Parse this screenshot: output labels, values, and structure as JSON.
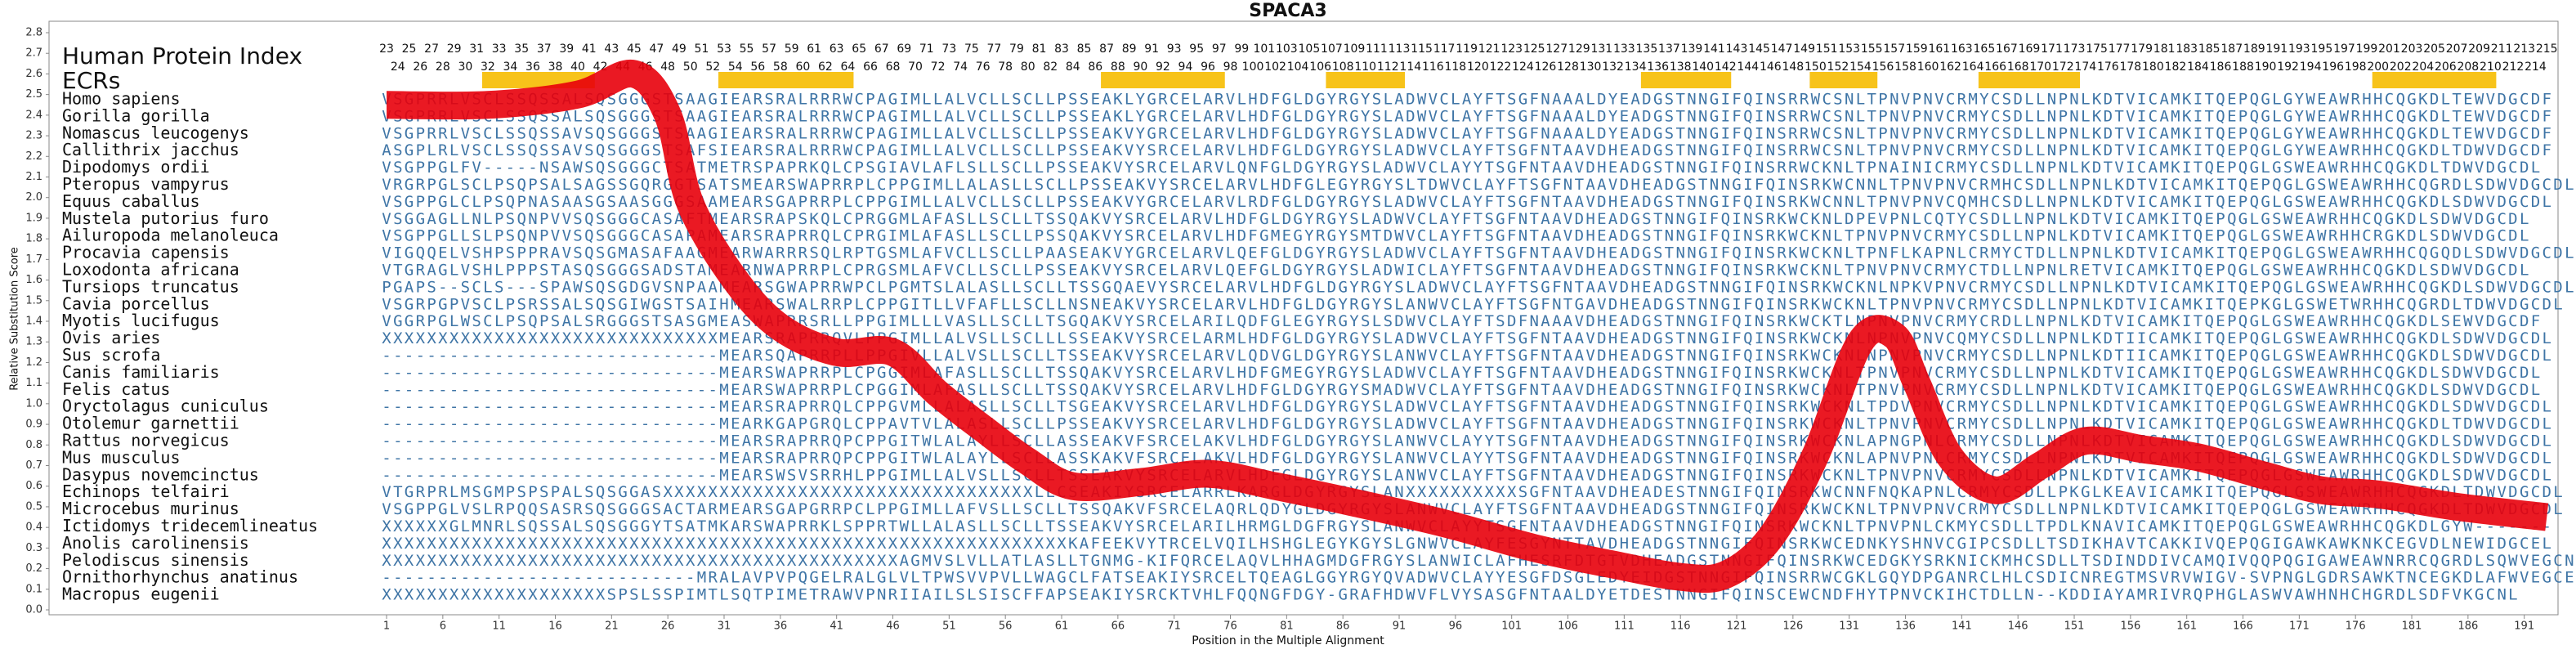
{
  "chart_data": {
    "type": "line",
    "title": "SPACA3",
    "header_label": "Human Protein Index",
    "ecr_label": "ECRs",
    "x_label": "Position in the Multiple Alignment",
    "y_label": "Relative Substitution Score",
    "xlim": [
      -29,
      194
    ],
    "ylim": [
      0,
      2.8
    ],
    "xticks": [
      1,
      6,
      11,
      16,
      21,
      26,
      31,
      36,
      41,
      46,
      51,
      56,
      61,
      66,
      71,
      76,
      81,
      86,
      91,
      96,
      101,
      106,
      111,
      116,
      121,
      126,
      131,
      136,
      141,
      146,
      151,
      156,
      161,
      166,
      171,
      176,
      181,
      186,
      191
    ],
    "yticks": [
      {
        "value": 0,
        "label": "0.0"
      },
      {
        "value": 0.1,
        "label": "0.1"
      },
      {
        "value": 0.2,
        "label": "0.2"
      },
      {
        "value": 0.3,
        "label": "0.3"
      },
      {
        "value": 0.4,
        "label": "0.4"
      },
      {
        "value": 0.5,
        "label": "0.5"
      },
      {
        "value": 0.6,
        "label": "0.6"
      },
      {
        "value": 0.7,
        "label": "0.7"
      },
      {
        "value": 0.8,
        "label": "0.8"
      },
      {
        "value": 0.9,
        "label": "0.9"
      },
      {
        "value": 1,
        "label": "1.0"
      },
      {
        "value": 1.1,
        "label": "1.1"
      },
      {
        "value": 1.2,
        "label": "1.2"
      },
      {
        "value": 1.3,
        "label": "1.3"
      },
      {
        "value": 1.4,
        "label": "1.4"
      },
      {
        "value": 1.5,
        "label": "1.5"
      },
      {
        "value": 1.6,
        "label": "1.6"
      },
      {
        "value": 1.7,
        "label": "1.7"
      },
      {
        "value": 1.8,
        "label": "1.8"
      },
      {
        "value": 1.9,
        "label": "1.9"
      },
      {
        "value": 2,
        "label": "2.0"
      },
      {
        "value": 2.1,
        "label": "2.1"
      },
      {
        "value": 2.2,
        "label": "2.2"
      },
      {
        "value": 2.3,
        "label": "2.3"
      },
      {
        "value": 2.4,
        "label": "2.4"
      },
      {
        "value": 2.5,
        "label": "2.5"
      },
      {
        "value": 2.6,
        "label": "2.6"
      },
      {
        "value": 2.7,
        "label": "2.7"
      },
      {
        "value": 2.8,
        "label": "2.8"
      }
    ],
    "index_odd": [
      23,
      25,
      27,
      29,
      31,
      33,
      35,
      37,
      39,
      41,
      43,
      45,
      47,
      49,
      51,
      53,
      55,
      57,
      59,
      61,
      63,
      65,
      67,
      69,
      71,
      73,
      75,
      77,
      79,
      81,
      83,
      85,
      87,
      89,
      91,
      93,
      95,
      97,
      99,
      101,
      103,
      105,
      107,
      109,
      111,
      113,
      115,
      117,
      119,
      121,
      123,
      125,
      127,
      129,
      131,
      133,
      135,
      137,
      139,
      141,
      143,
      145,
      147,
      149,
      151,
      153,
      155,
      157,
      159,
      161,
      163,
      165,
      167,
      169,
      171,
      173,
      175,
      177,
      179,
      181,
      183,
      185,
      187,
      189,
      191,
      193,
      195,
      197,
      199,
      201,
      203,
      205,
      207,
      209,
      211,
      213,
      215
    ],
    "index_even": [
      24,
      26,
      28,
      30,
      32,
      34,
      36,
      38,
      40,
      42,
      44,
      46,
      48,
      50,
      52,
      54,
      56,
      58,
      60,
      62,
      64,
      66,
      68,
      70,
      72,
      74,
      76,
      78,
      80,
      82,
      84,
      86,
      88,
      90,
      92,
      94,
      96,
      98,
      100,
      102,
      104,
      106,
      108,
      110,
      112,
      114,
      116,
      118,
      120,
      122,
      124,
      126,
      128,
      130,
      132,
      134,
      136,
      138,
      140,
      142,
      144,
      146,
      148,
      150,
      152,
      154,
      156,
      158,
      160,
      162,
      164,
      166,
      168,
      170,
      172,
      174,
      176,
      178,
      180,
      182,
      184,
      186,
      188,
      190,
      192,
      194,
      196,
      198,
      200,
      202,
      204,
      206,
      208,
      210,
      212,
      214
    ],
    "ecr_color": "#f7c31a",
    "ecrs": [
      [
        10,
        19
      ],
      [
        31,
        42
      ],
      [
        65,
        75
      ],
      [
        85,
        91
      ],
      [
        113,
        120
      ],
      [
        128,
        133
      ],
      [
        143,
        151
      ],
      [
        178,
        188
      ]
    ],
    "series": [
      {
        "color": "#e8000b",
        "x": [
          1,
          10,
          18,
          23,
          26,
          28,
          32,
          36,
          41,
          46,
          50,
          54,
          58,
          62,
          68,
          74,
          80,
          87,
          95,
          103,
          110,
          116,
          120,
          124,
          128,
          132,
          135,
          137,
          140,
          144,
          148,
          152,
          157,
          162,
          168,
          173,
          178,
          185,
          193
        ],
        "values": [
          2.45,
          2.45,
          2.5,
          2.6,
          2.4,
          1.97,
          1.6,
          1.37,
          1.25,
          1.25,
          1.05,
          0.88,
          0.72,
          0.6,
          0.62,
          0.66,
          0.6,
          0.52,
          0.42,
          0.3,
          0.22,
          0.16,
          0.17,
          0.35,
          0.75,
          1.3,
          1.33,
          1.1,
          0.74,
          0.58,
          0.7,
          0.82,
          0.78,
          0.74,
          0.65,
          0.58,
          0.56,
          0.5,
          0.45
        ]
      }
    ],
    "rows": [
      {
        "species": "Homo sapiens",
        "sequence": "VSGPRRLVSCLSSQSSALSQSGGGSTSAAGIEARSRALRRRWCPAGIMLLALVCLLSCLLPSSEAKLYGRCELARVLHDFGLDGYRGYSLADWVCLAYFTSGFNAAALDYEADGSTNNGIFQINSRRWCSNLTPNVPNVCRMYCSDLLNPNLKDTVICAMKITQEPQGLGYWEAWRHHCQGKDLTEWVDGCDF"
      },
      {
        "species": "Gorilla gorilla",
        "sequence": "VSGPRRLVSCLSSQSSALSQSGGGSTSAAGIEARSRALRRRWCPAGIMLLALVCLLSCLLPSSEAKLYGRCELARVLHDFGLDGYRGYSLADWVCLAYFTSGFNAAALDYEADGSTNNGIFQINSRRWCSNLTPNVPNVCRMYCSDLLNPNLKDTVICAMKITQEPQGLGYWEAWRHHCQGKDLTEWVDGCDF"
      },
      {
        "species": "Nomascus leucogenys",
        "sequence": "VSGPRRLVSCLSSQSSAVSQSGGGSTSAAGIEARSRALRRRWCPAGIMLLALVCLLSCLLPSSEAKVYGRCELARVLHDFGLDGYRGYSLADWVCLAYFTSGFNAAALDYEADGSTNNGIFQINSRRWCSNLTPNVPNVCRMYCSDLLNPNLKDTVICAMKITQEPQGLGYWEAWRHHCQGKDLTEWVDGCDF"
      },
      {
        "species": "Callithrix jacchus",
        "sequence": "ASGPLRLVSCLSSQSSAVSQSGGGSTSAFSIEARSRALRRRWCPAGIMLLALVCLLSCLLPSSEAKVYSRCELARVLHDFGLDGYRGYSLADWVCLAYFTSGFNTAAVDHEADGSTNNGIFQINSRRWCSNLTPNVPNVCRMYCSDLLNPNLKDTVICAMKITQEPQGLGYWEAWRHHCQGKDLTDWVDGCDF"
      },
      {
        "species": "Dipodomys ordii",
        "sequence": "VSGPPGLFV-----NSAWSQSGGGCTSATMETRSPAPRKQLCPSGIAVLAFLSLLSCLLPSSEAKVYSRCELARVLQNFGLDGYRGYSLADWVCLAYYTSGFNTAAVDHEADGSTNNGIFQINSRRWCKNLTPNAINICRMYCSDLLNPNLKDTVICAMKITQEPQGLGSWEAWRHHCQGKDLTDWVDGCDL"
      },
      {
        "species": "Pteropus vampyrus",
        "sequence": "VRGRPGLSCLPSQPSALSAGSSGQRGGTSATSMEARSWAPRRPLCPPGIMLLALASLLSCLLPSSEAKVYSRCELARVLHDFGLEGYRGYSLTDWVCLAYFTSGFNTAAVDHEADGSTNNGIFQINSRKWCNNLTPNVPNVCRMHCSDLLNPNLKDTVICAMKITQEPQGLGSWEAWRHHCQGRDLSDWVDGCDL"
      },
      {
        "species": "Equus caballus",
        "sequence": "VSGPPGLCLPSQPNASAASGSAASGGGSAAMEARSGAPRRPLCPPGIMLLALVCLLSCLLPSSEAKVYGRCELARVLRDFGLDGYRGYSLADWVCLAYFTSGFNTAAVDHEADGSTNNGIFQINSRKWCNNLTPNVPNVCQMHCSDLLNPNLKDTVICAMKITQEPQGLGSWEAWRHHCQGKDLSDWVDGCDL"
      },
      {
        "species": "Mustela putorius furo",
        "sequence": "VSGGAGLLNLPSQNPVVSQSGGGCASAFTMEARSRAPSKQLCPRGGMLAFASLLSCLLTSSQAKVYSRCELARVLHDFGLDGYRGYSLADWVCLAYFTSGFNTAAVDHEADGSTNNGIFQINSRKWCKNLDPEVPNLCQTYCSDLLNPNLKDTVICAMKITQEPQGLGSWEAWRHHCQGKDLSDWVDGCDL"
      },
      {
        "species": "Ailuropoda melanoleuca",
        "sequence": "VSGPPGLLSLPSQNPVVSQSGGGCASAPAMEARSRAPRRQLCPRGIMLAFASLLSCLLPSSQAKVYSRCELARVLHDFGMEGYRGYSMTDWVCLAYFTSGFNTAAVDHEADGSTNNGIFQINSRKWCKNLTPNVPNVCRMYCSDLLNPNLKDTVICAMKITQEPQGLGSWEAWRHHCRGKDLSDWVDGCDL"
      },
      {
        "species": "Procavia capensis",
        "sequence": "VIGQQELVSHPSPPRAVSQSGMASAFAAGMEARWARRRSQLRPTGSMLAFVCLLSCLLPAASEAKVYGRCELARVLQEFGLDGYRGYSLADWVCLAYFTSGFNTAAVDHEADGSTNNGIFQINSRKWCKNLTPNFLKAPNLCRMYCTDLLNPNLKDTVICAMKITQEPQGLGSWEAWRHHCQGQDLSDWVDGCDL"
      },
      {
        "species": "Loxodonta africana",
        "sequence": "VTGRAGLVSHLPPPSTASQSGGGSADSTAMEARNWAPRRPLCPRGSMLAFVCLLSCLLPSSEAKVYSRCELARVLQEFGLDGYRGYSLADWICLAYFTSGFNTAAVDHEADGSTNNGIFQINSRKWCKNLTPNVPNVCRMYCTDLLNPNLRETVICAMKITQEPQGLGSWEAWRHHCQGKDLSDWVDGCDL"
      },
      {
        "species": "Tursiops truncatus",
        "sequence": "PGAPS--SCLS---SPAWSQSGDGVSNPAAMEARSGWAPRRWPCLPGMTSLALASLLSCLLTSSGQAEVYSRCELARVLHDFGLDGYRGYSLADWVCLAYFTSGFNTAAVDHEADGSTNNGIFQINSRKWCKNLNPKVPNVCRMYCSDLLNPNLKDTVICAMKITQEPQGLGSWEAWRHHCQGKDLSDWVDGCDL"
      },
      {
        "species": "Cavia porcellus",
        "sequence": "VSGRPGPVSCLPSRSSALSQSGIWGSTSAIHMEARSWALRRPLCPPGITLLVFAFLLSCLLNSNEAKVYSRCELARVLHDFGLDGYRGYSLANWVCLAYFTSGFNTGAVDHEADGSTNNGIFQINSRKWCKNLTPNVPNVCRMYCSDLLNPNLKDTVICAMKITQEPKGLGSWETWRHHCQGRDLTDWVDGCDL"
      },
      {
        "species": "Myotis lucifugus",
        "sequence": "VGGRPGLWSCLPSQPSALSRGGGSTSASGMEASWAPRRSRLLPPGIMLLLVASLLSCLLTSGQAKVYSRCELARILQDFGLEGYRGYSLSDWVCLAYFTSDFNAAAVDHEADGSTNNGIFQINSRKWCKTLNPNVPNVCRMYCRDLLNPNLKDTVICAMKITQEPQGLGSWEAWRHHCQGKDLSEWVDGCDF"
      },
      {
        "species": "Ovis aries",
        "sequence": "XXXXXXXXXXXXXXXXXXXXXXXXXXXXXXMEARSRAPRRQVLPPGIMLLALVSLLSCLLLSSEAKVYSRCELARMLHDFGLDGYRGYSLADWVCLAYFTSGFNTAAVDHEADGSTNNGIFQINSRKWCKNLNPNVPNVCQMYCSDLLNPNLKDTIICAMKITQEPQGLGSWEAWRHHCQGKDLSDWVDGCDL"
      },
      {
        "species": "Sus scrofa",
        "sequence": "------------------------------MEARSQAPRRPLLPPGIVLLALVSLLSCLLTSSEAKVYSRCELARVLQDVGLDGYRGYSLANWVCLAYFTSGFNTAAVDHEADGSTNNGIFQINSRKWCKNLNPNVPNVCRMYCSDLLNPNLKDTIICAMKITQEPQGLGSWEAWRHHCQGKDLSDWVDGCDL"
      },
      {
        "species": "Canis familiaris",
        "sequence": "------------------------------MEARSWAPRRPLCPGGIMLAFASLLSCLLTSSQAKVYSRCELARVLHDFGMEGYRGYSLADWVCLAYFTSGFNTAAVDHEADGSTNNGIFQINSRKWCKNLTPNVPNVCRMYCSDLLNPNLKDTVICAMKITQEPQGLGSWEAWRHHCQGKDLSDWVDGCDL"
      },
      {
        "species": "Felis catus",
        "sequence": "------------------------------MEARSWAPRRPLCPGGIMLAFASLLSCLLTSSQAKVYSRCELARVLHDFGLDGYRGYSMADWVCLAYFTSGFNTAAVDHEADGSTNNGIFQINSRKWCKNLTPNVPNVCRMYCSDLLNPNLKDTVICAMKITQEPQGLGSWEAWRHHCQGKDLSDWVDGCDL"
      },
      {
        "species": "Oryctolagus cuniculus",
        "sequence": "------------------------------MEARSRAPRRQLCPPGVMLLALASLLSCLLTSGEAKVYSRCELARVLHDFGLDGYRGYSLADWVCLAYFTSGFNTAAVDHEADGSTNNGIFQINSRKWCKNLTPDVPNVCRMYCSDLLNPNLKDTVICAMKITQEPQGLGSWEAWRHHCQGKDLSDWVDGCDL"
      },
      {
        "species": "Otolemur garnettii",
        "sequence": "------------------------------MEARKGAPGRQLCPPAVTVLALASLLSCLLPSSEAKVYSRCELARVLHDFGLDGYRGYSLADWVCLAYFTSGFNTAAVDHEADGSTNNGIFQINSRKWCKNLTPNVPNVCRMYCSDLLNPNLKDTVICAMKITQEPQGLGSWEAWRHHCQGKDLTDWVDGCDL"
      },
      {
        "species": "Rattus norvegicus",
        "sequence": "------------------------------MEARSRAPRRQPCPPGITWLALAYLLSCLLASSEAKVFSRCELAKVLHDFGLDGYRGYSLANWVCLAYYTSGFNTAAVDHEADGSTNNGIFQINSRKWCKNLAPNGPNLCRMYCSDLLNPNLKDTVICAMKITQEPQGLGSWEAWRHHCQGKDLSDWVDGCDL"
      },
      {
        "species": "Mus musculus",
        "sequence": "------------------------------MEARSRAPRRQPCPPGITWLALAYLLSCLLASSKAKVFSRCELAKVLHDFGLDGYRGYSLANWVCLAYYTSGFNTAAVDHEADGSTNNGIFQINSRKWCKNLAPNVPNLCRMYCSDLLNPNLKDTVICAMKITQEPQGLGSWEAWRHHCQGKDLSDWVDGCDL"
      },
      {
        "species": "Dasypus novemcinctus",
        "sequence": "------------------------------MEARSWSVSRRHLPPGIMLLALVSLLSCLLTSSEAKVYSRCELARVLHDFGLDGYRGYSLANWVCLAYFTSGFNTAAVDHEADGSTNNGIFQINSRKWCKNLTPNVPNVCRMYCSDLLNPNLKDTVICAMKITQEPQGLGSWEAWRHHCQGKDLSDWVDGCDL"
      },
      {
        "species": "Echinops telfairi",
        "sequence": "VTGRPRLMSGMPSPSPALSQSGGASXXXXXXXXXXXXXXXXXXXXXXXXXXXXXXXXXLLCSEAKIYSRCELARRLKARGLDGYRGYSLANXXXXXXXXXXSGFNTAAVDHEADESTNNGIFQINSRKWCNNFNQKAPNLCRMYCSDLLPKGLKEAVICAMKITQEPQGLGSWEAWRHHCQGKDLTDWVDGCDL"
      },
      {
        "species": "Microcebus murinus",
        "sequence": "VSGPPGLVSLRPQQSASRSQSGGGSACTARMEARSGAPGRRPCLPPGIMLLAFVSLLSCLLTSSQAKVFSRCELAQRLQDYGLDGYRGYSLANWVCLAYFTSGFNTAAVDHEADGSTNNGIFQINSRKWCKNLTPNVPNVCRMYCSDLLNPNLKDTVICAMKITQEPQGLGSWEAWRHHCQGKDLTDWVDGCDL"
      },
      {
        "species": "Ictidomys tridecemlineatus",
        "sequence": "XXXXXXGLMNRLSQSSALSQSGGGYTSATMKARSWAPRRKLSPPRTWLLALASLLSCLLTSSEAKVYSRCELARILHRMGLDGFRGYSLANWVCLAYYTSGFNTAAVDHEADGSTNNGIFQINSRKWCKNLTPNVPNLCKMYCSDLLTPDLKNAVICAMKITQEPQGLGSWEAWRHHCQGKDLGYW-------"
      },
      {
        "species": "Anolis carolinensis",
        "sequence": "XXXXXXXXXXXXXXXXXXXXXXXXXXXXXXXXXXXXXXXXXXXXXXXXXXXXXXXXXXXXXKAFEEKVYTRCELVQILHSHGLEGYKGYSLGNWVCLAYFESGYNTTAVDHEADGSTNNGIFQINSRKWCEDNKYSHNVCGIPCSDLLTSDIKHAVTCAKKIVQEPQGIGAWKAWKNKCEGVDLNEWIDGCEL"
      },
      {
        "species": "Pelodiscus sinensis",
        "sequence": "XXXXXXXXXXXXXXXXXXXXXXXXXXXXXXXXXXXXXXXXXXXXXXAGMVSLVLLATLASLLTGNMG-KIFQRCELAQVLHHAGMDGFRGYSLANWICLAFHESRFDTGTVDHEADGSTNNGIFQINSRKWCEDGKYSRKNICKMHCSDLLTSDINDDIVCAMQIVQQPQGIGAWEAWNRRCQGRDLSQWVEGCNV"
      },
      {
        "species": "Ornithorhynchus anatinus",
        "sequence": "----------------------------MRALAVPVPQGELRALGLVLTPWSVVPVLLWAGCLFATSEAKIYSRCELTQEAGLGGYRGYQVADWVCLAYYESGFDSGLEDYEIDGSTNNGIFQINSRRWCGKLGQYDPGANRCLHLCSDICNREGTMSVRVWIGV-SVPNGLGDRSAWKTNCEGKDLAFWVEGCEL"
      },
      {
        "species": "Macropus eugenii",
        "sequence": "XXXXXXXXXXXXXXXXXXXXSPSLSSPIMTLSQTPIMETRAWVPNRIIAILSLSISCFFAPSEAKIYSRCKTVHLFQQNGFDGY-GRAFHDWVFLVYSASGFNTAALDYETDESTNNGIFQINSCEWCNDFHYTPNVCKIHCTDLLN--KDDIAYAMRIVRQPHGLASWVAWHNHCHGRDLSDFVKGCNL"
      }
    ]
  }
}
